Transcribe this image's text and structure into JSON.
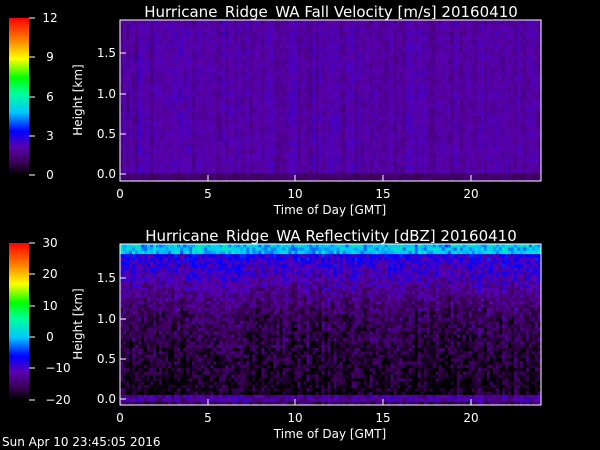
{
  "timestamp": "Sun Apr 10 23:45:05 2016",
  "chart_data": [
    {
      "type": "heatmap",
      "title": "Hurricane_Ridge_WA Fall Velocity [m/s] 20160410",
      "xlabel": "Time of Day [GMT]",
      "ylabel": "Height [km]",
      "xlim": [
        0,
        23.75
      ],
      "ylim": [
        0,
        1.87
      ],
      "xticks": [
        "0",
        "5",
        "10",
        "15",
        "20"
      ],
      "yticks": [
        "0.0",
        "0.5",
        "1.0",
        "1.5"
      ],
      "colorbar": {
        "min": 0,
        "max": 12,
        "ticks": [
          "12",
          "9",
          "6",
          "3",
          "0"
        ],
        "colormap": "rainbow"
      },
      "field_description_values": {
        "dominant_value": 2.0,
        "near_surface_value": 1.2,
        "spread": 0.6
      }
    },
    {
      "type": "heatmap",
      "title": "Hurricane_Ridge_WA Reflectivity [dBZ] 20160410",
      "xlabel": "Time of Day [GMT]",
      "ylabel": "Height [km]",
      "xlim": [
        0,
        23.75
      ],
      "ylim": [
        0,
        1.87
      ],
      "xticks": [
        "0",
        "5",
        "10",
        "15",
        "20"
      ],
      "yticks": [
        "0.0",
        "0.5",
        "1.0",
        "1.5"
      ],
      "colorbar": {
        "min": -20,
        "max": 30,
        "ticks": [
          "30",
          "20",
          "10",
          "0",
          "−10",
          "−20"
        ],
        "colormap": "rainbow"
      },
      "field_description_values": {
        "top_value": 0,
        "upper_value": -8,
        "middle_value": -16,
        "lower_value": -19,
        "surface_band_value": -12
      }
    }
  ]
}
